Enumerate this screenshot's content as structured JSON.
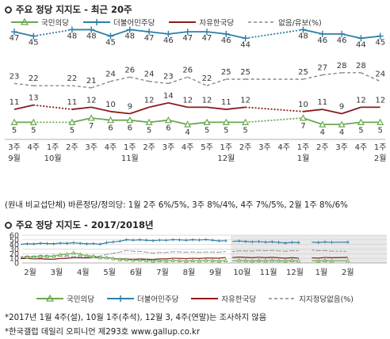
{
  "top": {
    "title": "주요 정당 지지도 - 최근 20주",
    "legend": [
      "국민의당",
      "더불어민주당",
      "자유한국당",
      "없음/유보(%)"
    ],
    "note": "(원내 비교섭단체) 바른정당/정의당: 1월 2주 6%/5%, 3주 8%/4%, 4주 7%/5%, 2월 1주 8%/6%"
  },
  "bottom": {
    "title": "주요 정당 지지도 - 2017/2018년",
    "legend": [
      "국민의당",
      "더불어민주당",
      "자유한국당",
      "지지정당없음(%)"
    ]
  },
  "notes": [
    "*2017년 1월 4주(설), 10월 1주(추석), 12월 3, 4주(연말)는 조사하지 않음",
    "*한국갤럽 데일리 오피니언 제293호 www.gallup.co.kr"
  ],
  "colors": {
    "minjoo": "#2e7fa6",
    "jayu": "#8b1a1a",
    "kukmin": "#6aa84f",
    "none": "#888888"
  },
  "chart_data": [
    {
      "type": "line",
      "title": "주요 정당 지지도 - 최근 20주",
      "x": [
        "3주 9월",
        "4주",
        "1주 10월",
        "2주",
        "3주",
        "4주",
        "1주 11월",
        "2주",
        "3주",
        "4주",
        "5주",
        "1주 12월",
        "2주",
        "3주",
        "4주",
        "1주 1월",
        "2주",
        "3주",
        "4주",
        "1주 2월"
      ],
      "series": [
        {
          "name": "더불어민주당",
          "values": [
            47,
            45,
            null,
            48,
            48,
            45,
            48,
            47,
            46,
            47,
            47,
            46,
            44,
            null,
            null,
            48,
            46,
            46,
            44,
            45
          ]
        },
        {
          "name": "없음/유보(%)",
          "values": [
            23,
            22,
            null,
            22,
            21,
            24,
            26,
            24,
            23,
            26,
            22,
            25,
            25,
            null,
            null,
            25,
            27,
            28,
            28,
            24
          ]
        },
        {
          "name": "자유한국당",
          "values": [
            11,
            13,
            null,
            11,
            12,
            10,
            9,
            12,
            14,
            12,
            12,
            11,
            12,
            null,
            null,
            10,
            11,
            9,
            12,
            12
          ]
        },
        {
          "name": "국민의당",
          "values": [
            5,
            5,
            null,
            5,
            7,
            6,
            6,
            5,
            6,
            4,
            5,
            5,
            5,
            null,
            null,
            7,
            4,
            4,
            5,
            5
          ]
        }
      ]
    },
    {
      "type": "line",
      "title": "주요 정당 지지도 - 2017/2018년",
      "x": [
        "2월",
        "3월",
        "4월",
        "5월",
        "6월",
        "7월",
        "8월",
        "9월",
        "10월",
        "11월",
        "12월",
        "1월",
        "2월"
      ],
      "ylim": [
        0,
        60
      ],
      "yticks": [
        0,
        10,
        20,
        30,
        40,
        50,
        60
      ],
      "series": [
        {
          "name": "더불어민주당",
          "values": [
            41,
            42,
            43,
            41,
            50,
            49,
            50,
            50,
            47,
            46,
            44,
            45,
            45
          ]
        },
        {
          "name": "지지정당없음(%)",
          "values": [
            14,
            16,
            13,
            15,
            27,
            22,
            24,
            23,
            25,
            27,
            26,
            28,
            25
          ]
        },
        {
          "name": "자유한국당",
          "values": [
            10,
            8,
            11,
            12,
            8,
            8,
            10,
            10,
            12,
            12,
            11,
            11,
            12
          ]
        },
        {
          "name": "국민의당",
          "values": [
            12,
            14,
            21,
            12,
            7,
            5,
            5,
            5,
            5,
            5,
            5,
            5,
            5
          ]
        }
      ]
    }
  ]
}
